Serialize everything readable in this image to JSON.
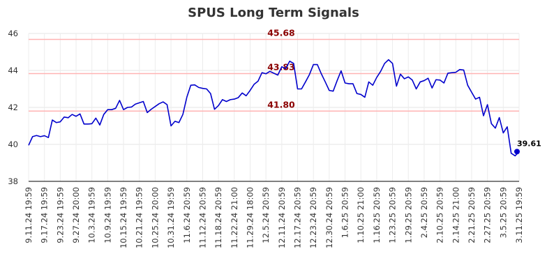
{
  "chart_data": {
    "type": "line",
    "title": "SPUS Long Term Signals",
    "xlabel": "",
    "ylabel": "",
    "ylim": [
      38,
      46
    ],
    "y_ticks": [
      "38",
      "40",
      "42",
      "44",
      "46"
    ],
    "grid": true,
    "x_tick_labels": [
      "9.11.24 19:59",
      "9.17.24 19:59",
      "9.23.24 19:59",
      "9.27.24 20:00",
      "10.3.24 19:59",
      "10.9.24 19:59",
      "10.15.24 19:59",
      "10.21.24 19:59",
      "10.25.24 20:00",
      "10.31.24 19:59",
      "11.6.24 20:59",
      "11.12.24 20:59",
      "11.18.24 20:59",
      "11.22.24 21:00",
      "11.29.24 18:00",
      "12.5.24 20:59",
      "12.11.24 20:59",
      "12.17.24 20:59",
      "12.23.24 20:59",
      "12.30.24 20:59",
      "1.6.25 20:59",
      "1.10.25 21:00",
      "1.16.25 20:59",
      "1.23.25 20:59",
      "1.29.25 20:59",
      "2.4.25 20:59",
      "2.10.25 20:59",
      "2.14.25 21:00",
      "2.21.25 20:59",
      "2.27.25 20:59",
      "3.5.25 20:59",
      "3.11.25 19:59"
    ],
    "reference_lines": [
      {
        "value": 45.68,
        "label": "45.68"
      },
      {
        "value": 43.83,
        "label": "43.83"
      },
      {
        "value": 41.8,
        "label": "41.80"
      }
    ],
    "series": [
      {
        "color": "#0000cc",
        "values": [
          39.95,
          40.42,
          40.48,
          40.42,
          40.47,
          40.37,
          41.32,
          41.18,
          41.22,
          41.48,
          41.44,
          41.62,
          41.52,
          41.65,
          41.1,
          41.1,
          41.12,
          41.42,
          41.05,
          41.62,
          41.88,
          41.88,
          41.95,
          42.38,
          41.88,
          42.0,
          42.02,
          42.18,
          42.25,
          42.32,
          41.72,
          41.9,
          42.05,
          42.2,
          42.3,
          42.15,
          41.0,
          41.25,
          41.18,
          41.62,
          42.55,
          43.2,
          43.22,
          43.08,
          43.03,
          43.0,
          42.75,
          41.9,
          42.1,
          42.42,
          42.32,
          42.42,
          42.45,
          42.53,
          42.78,
          42.63,
          42.92,
          43.25,
          43.42,
          43.88,
          43.82,
          43.95,
          43.85,
          43.75,
          44.2,
          44.1,
          44.5,
          44.38,
          43.0,
          43.0,
          43.38,
          43.78,
          44.32,
          44.32,
          43.82,
          43.38,
          42.92,
          42.88,
          43.45,
          43.98,
          43.32,
          43.28,
          43.28,
          42.75,
          42.7,
          42.55,
          43.38,
          43.2,
          43.62,
          43.95,
          44.38,
          44.58,
          44.38,
          43.15,
          43.8,
          43.55,
          43.65,
          43.48,
          43.0,
          43.38,
          43.45,
          43.58,
          43.05,
          43.5,
          43.48,
          43.32,
          43.85,
          43.88,
          43.9,
          44.05,
          44.02,
          43.2,
          42.82,
          42.45,
          42.55,
          41.55,
          42.15,
          41.12,
          40.88,
          41.45,
          40.62,
          40.95,
          39.52,
          39.38,
          39.61
        ]
      }
    ],
    "last_value_label": "39.61"
  }
}
